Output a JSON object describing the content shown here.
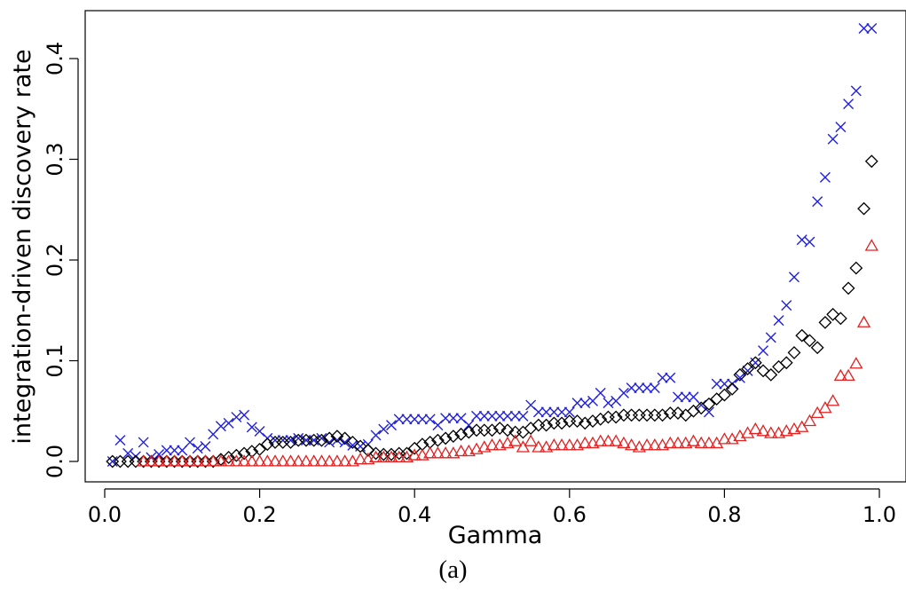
{
  "caption": "(a)",
  "chart_data": {
    "type": "scatter",
    "xlabel": "Gamma",
    "ylabel": "integration-driven discovery rate",
    "xlim": [
      0.0,
      1.0
    ],
    "ylim": [
      0.0,
      0.44
    ],
    "xticks": [
      "0.0",
      "0.2",
      "0.4",
      "0.6",
      "0.8",
      "1.0"
    ],
    "yticks": [
      "0.0",
      "0.1",
      "0.2",
      "0.3",
      "0.4"
    ],
    "grid": false,
    "legend": "none",
    "series": [
      {
        "marker": "cross",
        "color": "#1f1fe6",
        "x": [
          0.01,
          0.02,
          0.03,
          0.04,
          0.05,
          0.06,
          0.07,
          0.08,
          0.09,
          0.1,
          0.11,
          0.12,
          0.13,
          0.14,
          0.15,
          0.16,
          0.17,
          0.18,
          0.19,
          0.2,
          0.21,
          0.22,
          0.23,
          0.24,
          0.25,
          0.26,
          0.27,
          0.28,
          0.29,
          0.3,
          0.31,
          0.32,
          0.33,
          0.34,
          0.35,
          0.36,
          0.37,
          0.38,
          0.39,
          0.4,
          0.41,
          0.42,
          0.43,
          0.44,
          0.45,
          0.46,
          0.47,
          0.48,
          0.49,
          0.5,
          0.51,
          0.52,
          0.53,
          0.54,
          0.55,
          0.56,
          0.57,
          0.58,
          0.59,
          0.6,
          0.61,
          0.62,
          0.63,
          0.64,
          0.65,
          0.66,
          0.67,
          0.68,
          0.69,
          0.7,
          0.71,
          0.72,
          0.73,
          0.74,
          0.75,
          0.76,
          0.77,
          0.78,
          0.79,
          0.8,
          0.81,
          0.82,
          0.83,
          0.84,
          0.85,
          0.86,
          0.87,
          0.88,
          0.89,
          0.9,
          0.91,
          0.92,
          0.93,
          0.94,
          0.95,
          0.96,
          0.97,
          0.98,
          0.99
        ],
        "y": [
          0.0,
          0.021,
          0.008,
          0.005,
          0.019,
          0.004,
          0.007,
          0.011,
          0.011,
          0.011,
          0.019,
          0.013,
          0.015,
          0.027,
          0.035,
          0.038,
          0.044,
          0.046,
          0.034,
          0.03,
          0.023,
          0.021,
          0.021,
          0.021,
          0.023,
          0.021,
          0.021,
          0.023,
          0.019,
          0.021,
          0.019,
          0.016,
          0.015,
          0.017,
          0.026,
          0.032,
          0.036,
          0.042,
          0.042,
          0.042,
          0.042,
          0.042,
          0.036,
          0.043,
          0.043,
          0.043,
          0.036,
          0.045,
          0.045,
          0.045,
          0.045,
          0.045,
          0.045,
          0.045,
          0.056,
          0.049,
          0.049,
          0.049,
          0.049,
          0.049,
          0.058,
          0.058,
          0.06,
          0.068,
          0.058,
          0.06,
          0.068,
          0.073,
          0.073,
          0.073,
          0.073,
          0.083,
          0.083,
          0.064,
          0.064,
          0.064,
          0.056,
          0.049,
          0.077,
          0.077,
          0.077,
          0.083,
          0.09,
          0.098,
          0.11,
          0.123,
          0.14,
          0.155,
          0.183,
          0.22,
          0.218,
          0.258,
          0.282,
          0.32,
          0.332,
          0.355,
          0.368,
          0.43,
          0.43
        ]
      },
      {
        "marker": "diamond",
        "color": "#000000",
        "x": [
          0.01,
          0.02,
          0.03,
          0.04,
          0.05,
          0.06,
          0.07,
          0.08,
          0.09,
          0.1,
          0.11,
          0.12,
          0.13,
          0.14,
          0.15,
          0.16,
          0.17,
          0.18,
          0.19,
          0.2,
          0.21,
          0.22,
          0.23,
          0.24,
          0.25,
          0.26,
          0.27,
          0.28,
          0.29,
          0.3,
          0.31,
          0.32,
          0.33,
          0.34,
          0.35,
          0.36,
          0.37,
          0.38,
          0.39,
          0.4,
          0.41,
          0.42,
          0.43,
          0.44,
          0.45,
          0.46,
          0.47,
          0.48,
          0.49,
          0.5,
          0.51,
          0.52,
          0.53,
          0.54,
          0.55,
          0.56,
          0.57,
          0.58,
          0.59,
          0.6,
          0.61,
          0.62,
          0.63,
          0.64,
          0.65,
          0.66,
          0.67,
          0.68,
          0.69,
          0.7,
          0.71,
          0.72,
          0.73,
          0.74,
          0.75,
          0.76,
          0.77,
          0.78,
          0.79,
          0.8,
          0.81,
          0.82,
          0.83,
          0.84,
          0.85,
          0.86,
          0.87,
          0.88,
          0.89,
          0.9,
          0.91,
          0.92,
          0.93,
          0.94,
          0.95,
          0.96,
          0.97,
          0.98,
          0.99
        ],
        "y": [
          0.0,
          0.0,
          0.0,
          0.0,
          0.0,
          0.0,
          0.0,
          0.0,
          0.0,
          0.0,
          0.0,
          0.0,
          0.0,
          0.0,
          0.002,
          0.004,
          0.006,
          0.008,
          0.01,
          0.012,
          0.017,
          0.019,
          0.019,
          0.019,
          0.021,
          0.021,
          0.021,
          0.021,
          0.023,
          0.025,
          0.023,
          0.019,
          0.015,
          0.011,
          0.008,
          0.007,
          0.007,
          0.008,
          0.008,
          0.013,
          0.017,
          0.019,
          0.021,
          0.023,
          0.025,
          0.027,
          0.029,
          0.031,
          0.031,
          0.031,
          0.033,
          0.031,
          0.029,
          0.029,
          0.033,
          0.036,
          0.036,
          0.038,
          0.038,
          0.04,
          0.04,
          0.038,
          0.04,
          0.042,
          0.044,
          0.044,
          0.046,
          0.046,
          0.046,
          0.046,
          0.046,
          0.046,
          0.048,
          0.048,
          0.046,
          0.05,
          0.053,
          0.057,
          0.062,
          0.066,
          0.072,
          0.086,
          0.092,
          0.098,
          0.09,
          0.086,
          0.094,
          0.098,
          0.108,
          0.125,
          0.12,
          0.113,
          0.138,
          0.146,
          0.142,
          0.172,
          0.192,
          0.251,
          0.298
        ]
      },
      {
        "marker": "triangle",
        "color": "#e61f1f",
        "x": [
          0.05,
          0.06,
          0.07,
          0.08,
          0.09,
          0.1,
          0.11,
          0.12,
          0.13,
          0.14,
          0.15,
          0.16,
          0.17,
          0.18,
          0.19,
          0.2,
          0.21,
          0.22,
          0.23,
          0.24,
          0.25,
          0.26,
          0.27,
          0.28,
          0.29,
          0.3,
          0.31,
          0.32,
          0.33,
          0.34,
          0.35,
          0.36,
          0.37,
          0.38,
          0.39,
          0.4,
          0.41,
          0.42,
          0.43,
          0.44,
          0.45,
          0.46,
          0.47,
          0.48,
          0.49,
          0.5,
          0.51,
          0.52,
          0.53,
          0.54,
          0.55,
          0.56,
          0.57,
          0.58,
          0.59,
          0.6,
          0.61,
          0.62,
          0.63,
          0.64,
          0.65,
          0.66,
          0.67,
          0.68,
          0.69,
          0.7,
          0.71,
          0.72,
          0.73,
          0.74,
          0.75,
          0.76,
          0.77,
          0.78,
          0.79,
          0.8,
          0.81,
          0.82,
          0.83,
          0.84,
          0.85,
          0.86,
          0.87,
          0.88,
          0.89,
          0.9,
          0.91,
          0.92,
          0.93,
          0.94,
          0.95,
          0.96,
          0.97,
          0.98,
          0.99
        ],
        "y": [
          0.0,
          0.0,
          0.0,
          0.0,
          0.0,
          0.0,
          0.0,
          0.0,
          0.0,
          0.0,
          0.0,
          0.0,
          0.0,
          0.0,
          0.0,
          0.0,
          0.0,
          0.0,
          0.0,
          0.0,
          0.0,
          0.0,
          0.0,
          0.0,
          0.0,
          0.0,
          0.0,
          0.0,
          0.002,
          0.002,
          0.004,
          0.004,
          0.004,
          0.004,
          0.004,
          0.006,
          0.006,
          0.008,
          0.008,
          0.008,
          0.008,
          0.01,
          0.01,
          0.012,
          0.014,
          0.016,
          0.016,
          0.018,
          0.02,
          0.014,
          0.02,
          0.014,
          0.014,
          0.016,
          0.016,
          0.016,
          0.016,
          0.018,
          0.018,
          0.02,
          0.02,
          0.02,
          0.018,
          0.016,
          0.014,
          0.016,
          0.016,
          0.016,
          0.018,
          0.018,
          0.018,
          0.02,
          0.018,
          0.018,
          0.018,
          0.022,
          0.022,
          0.025,
          0.028,
          0.032,
          0.03,
          0.028,
          0.028,
          0.03,
          0.032,
          0.034,
          0.04,
          0.048,
          0.053,
          0.06,
          0.085,
          0.085,
          0.097,
          0.138,
          0.214
        ]
      }
    ]
  }
}
